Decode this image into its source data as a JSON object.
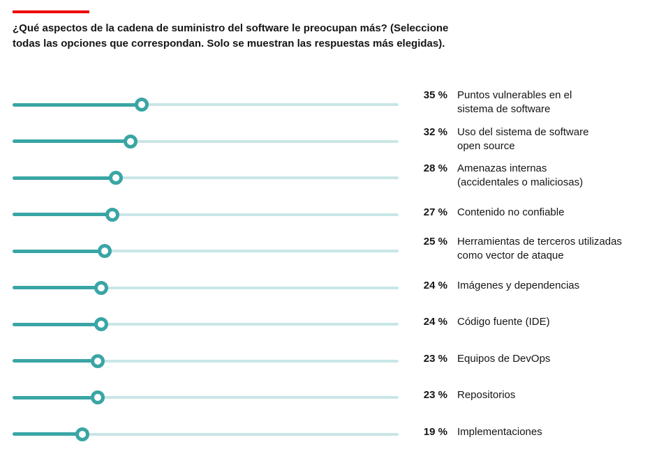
{
  "page": {
    "accent_color": "#ee0000",
    "background": "#ffffff",
    "text_color": "#151515"
  },
  "header": {
    "title": "¿Qué aspectos de la cadena de suministro del software le preocupan más? (Seleccione\ntodas las opciones que correspondan. Solo se muestran las respuestas más elegidas)."
  },
  "chart_data": {
    "type": "bar",
    "variant": "horizontal-slider-dot-plot",
    "title": "¿Qué aspectos de la cadena de suministro del software le preocupan más? (Seleccione todas las opciones que correspondan. Solo se muestran las respuestas más elegidas).",
    "unit": "%",
    "categories": [
      "Puntos vulnerables en el\nsistema de software",
      "Uso del sistema de software\nopen source",
      "Amenazas internas\n(accidentales o maliciosas)",
      "Contenido no confiable",
      "Herramientas de terceros utilizadas\ncomo vector de ataque",
      "Imágenes y dependencias",
      "Código fuente (IDE)",
      "Equipos de DevOps",
      "Repositorios",
      "Implementaciones"
    ],
    "values": [
      35,
      32,
      28,
      27,
      25,
      24,
      24,
      23,
      23,
      19
    ],
    "percent_labels": [
      "35 %",
      "32 %",
      "28 %",
      "27 %",
      "25 %",
      "24 %",
      "24 %",
      "23 %",
      "23 %",
      "19 %"
    ],
    "xlabel": "",
    "ylabel": "",
    "xlim": [
      0,
      104.5
    ],
    "grid": false,
    "legend": false,
    "colors": {
      "value_track": "#3aa5a5",
      "remainder_track": "#c9e6e6",
      "knob_fill": "#ffffff"
    }
  }
}
